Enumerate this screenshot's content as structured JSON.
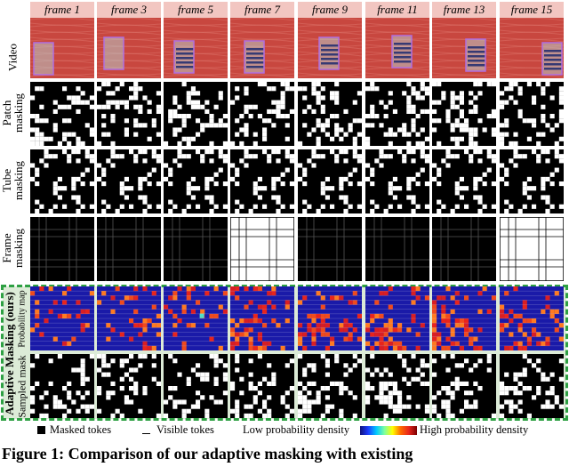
{
  "frames": [
    "frame 1",
    "frame 3",
    "frame 5",
    "frame 7",
    "frame 9",
    "frame 11",
    "frame 13",
    "frame 15"
  ],
  "rows": {
    "video": "Video",
    "patch": [
      "Patch",
      "masking"
    ],
    "tube": [
      "Tube",
      "masking"
    ],
    "frame": [
      "Frame",
      "masking"
    ],
    "adaptive": "Adaptive Masking (ours)",
    "prob_map": "Probability map",
    "sampled": "Sampled mask"
  },
  "legend": {
    "masked": "Masked tokes",
    "visible": "Visible tokes",
    "low": "Low probability density",
    "high": "High probability density"
  },
  "caption": "Figure 1: Comparison of our adaptive masking with existing",
  "colors": {
    "video_red": "#c8473f",
    "highlight_box": "#b06fe0",
    "frame_header": "#f2c6c1",
    "adaptive_border": "#2ea043",
    "adaptive_bg": "#dcebd7",
    "prob_low": "#1a1aa8",
    "prob_high": "#e8241c"
  },
  "frame_masking_visible": [
    false,
    false,
    false,
    true,
    false,
    false,
    false,
    true
  ]
}
